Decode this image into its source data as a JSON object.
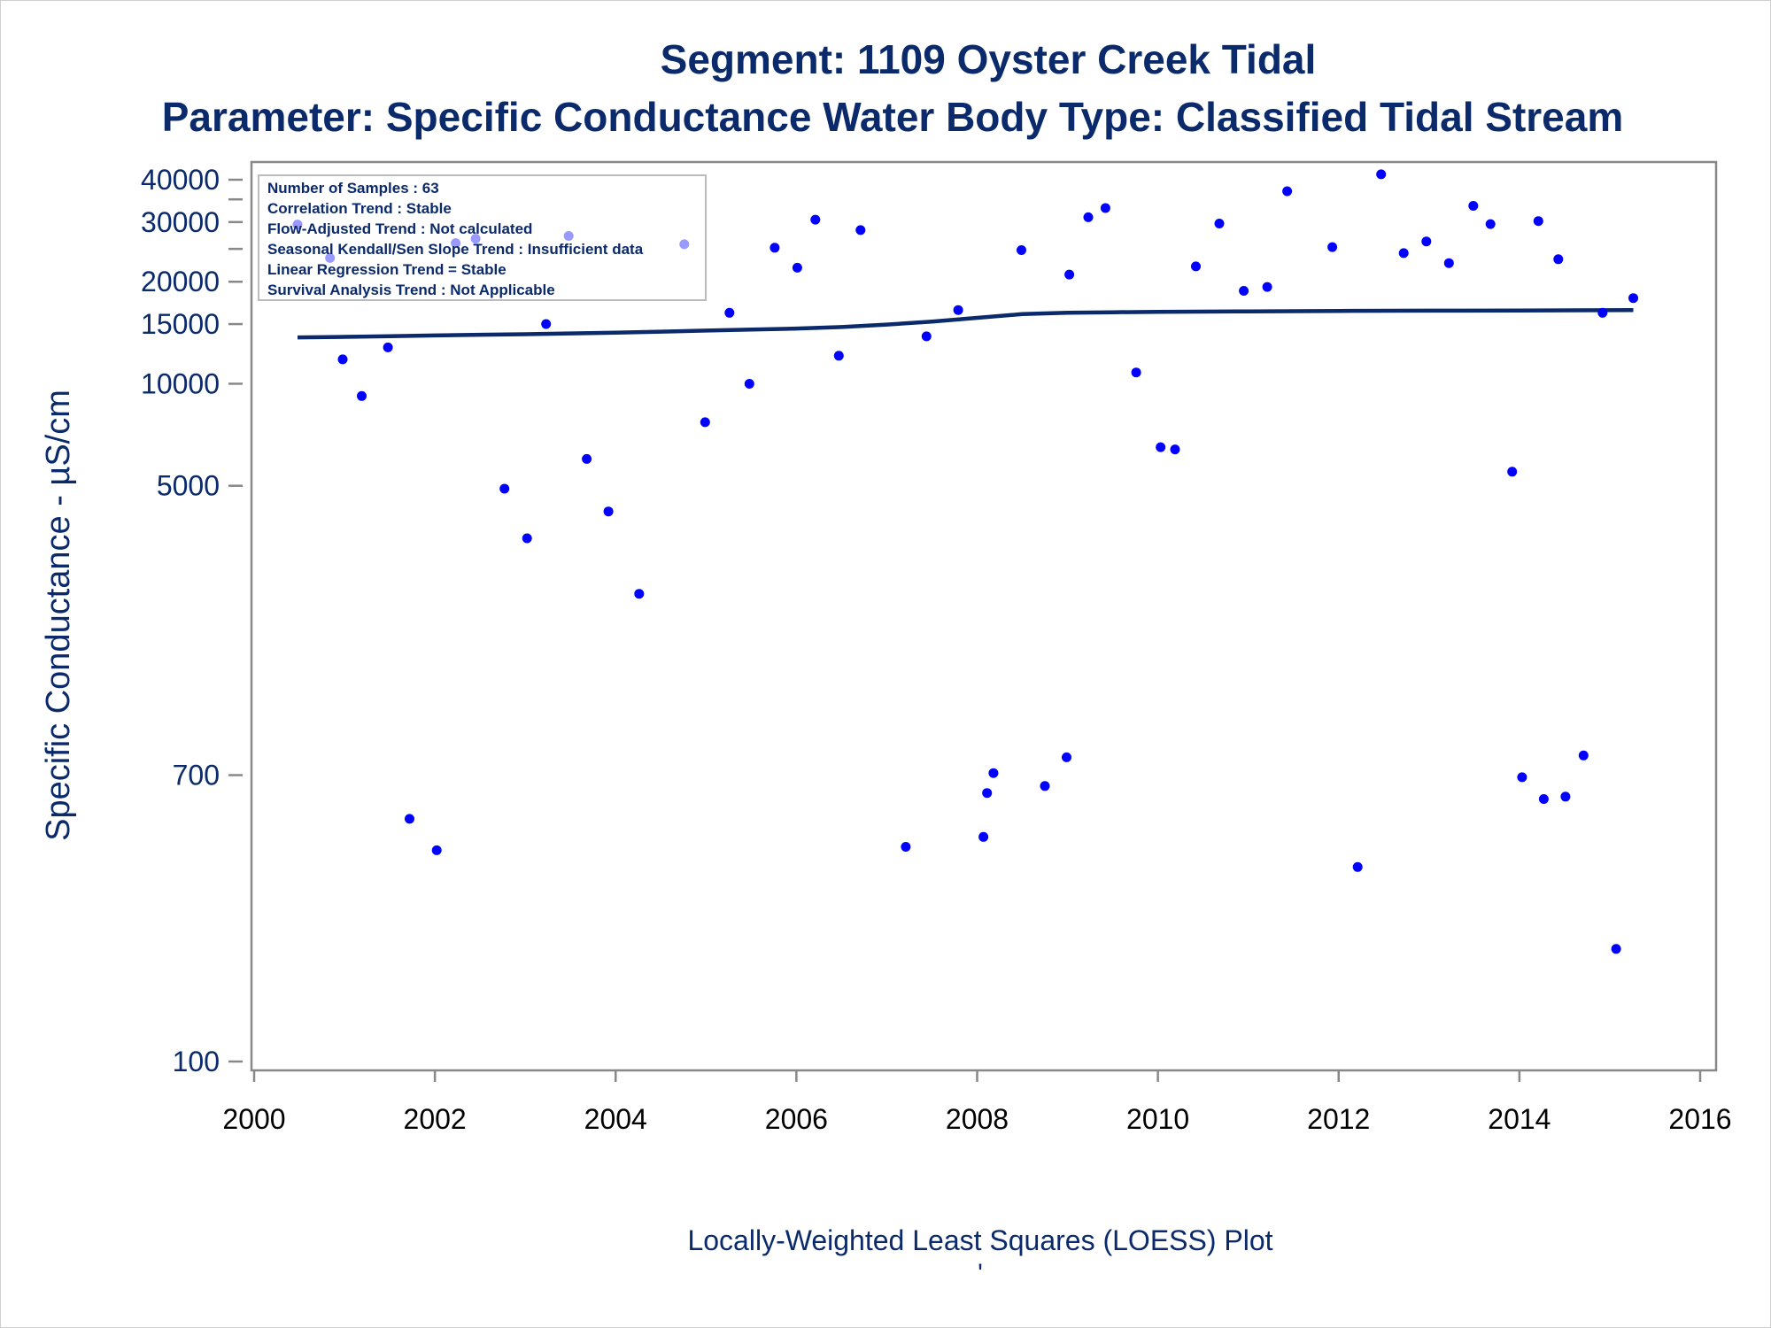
{
  "chart_data": {
    "type": "scatter",
    "title": "Segment: 1109  Oyster Creek Tidal",
    "subtitle": "Parameter: Specific Conductance   Water Body Type: Classified Tidal Stream",
    "xlabel": "Locally-Weighted Least Squares (LOESS) Plot",
    "ylabel": "Specific Conductance -  µS/cm",
    "footnote": "'",
    "y_scale": "log",
    "xlim": [
      2000,
      2016
    ],
    "ylim": [
      90,
      45000
    ],
    "x_ticks": [
      "2000",
      "2002",
      "2004",
      "2006",
      "2008",
      "2010",
      "2012",
      "2014",
      "2016"
    ],
    "y_ticks": [
      {
        "value": 100,
        "label": "100"
      },
      {
        "value": 700,
        "label": "700"
      },
      {
        "value": 5000,
        "label": "5000"
      },
      {
        "value": 10000,
        "label": "10000"
      },
      {
        "value": 15000,
        "label": "15000"
      },
      {
        "value": 20000,
        "label": "20000"
      },
      {
        "value": 30000,
        "label": "30000"
      },
      {
        "value": 40000,
        "label": "40000"
      }
    ],
    "y_minor_ticks": [
      25000,
      35000
    ],
    "info_box": [
      "Number of Samples : 63",
      "Correlation Trend : Stable",
      "Flow-Adjusted Trend : Not calculated",
      "Seasonal Kendall/Sen Slope Trend : Insufficient data",
      "Linear Regression Trend = Stable",
      "Survival Analysis Trend : Not Applicable"
    ],
    "info_box_position": "top-left",
    "grid": false,
    "colors": {
      "points": "#0000ff",
      "loess": "#0b2a6b",
      "text": "#0b2a6b",
      "axis": "#888888"
    },
    "series": [
      {
        "type": "scatter",
        "points": [
          [
            2000.48,
            29500
          ],
          [
            2000.84,
            23500
          ],
          [
            2000.98,
            11800
          ],
          [
            2001.19,
            9200
          ],
          [
            2001.48,
            12800
          ],
          [
            2001.72,
            520
          ],
          [
            2002.02,
            420
          ],
          [
            2002.23,
            26000
          ],
          [
            2002.45,
            26800
          ],
          [
            2002.77,
            4900
          ],
          [
            2003.02,
            3500
          ],
          [
            2003.23,
            15000
          ],
          [
            2003.48,
            27300
          ],
          [
            2003.68,
            6000
          ],
          [
            2003.92,
            4200
          ],
          [
            2004.26,
            2400
          ],
          [
            2004.76,
            25800
          ],
          [
            2004.99,
            7700
          ],
          [
            2005.26,
            16200
          ],
          [
            2005.48,
            10000
          ],
          [
            2005.76,
            25200
          ],
          [
            2006.01,
            22000
          ],
          [
            2006.21,
            30500
          ],
          [
            2006.47,
            12100
          ],
          [
            2006.71,
            28400
          ],
          [
            2007.21,
            430
          ],
          [
            2007.44,
            13800
          ],
          [
            2007.79,
            16500
          ],
          [
            2008.07,
            460
          ],
          [
            2008.11,
            620
          ],
          [
            2008.18,
            710
          ],
          [
            2008.49,
            24800
          ],
          [
            2008.75,
            650
          ],
          [
            2008.99,
            790
          ],
          [
            2009.02,
            21000
          ],
          [
            2009.23,
            31000
          ],
          [
            2009.42,
            33000
          ],
          [
            2009.76,
            10800
          ],
          [
            2010.03,
            6500
          ],
          [
            2010.19,
            6400
          ],
          [
            2010.42,
            22200
          ],
          [
            2010.68,
            29700
          ],
          [
            2010.95,
            18800
          ],
          [
            2011.21,
            19300
          ],
          [
            2011.43,
            37000
          ],
          [
            2011.93,
            25300
          ],
          [
            2012.21,
            375
          ],
          [
            2012.47,
            41500
          ],
          [
            2012.72,
            24300
          ],
          [
            2012.97,
            26300
          ],
          [
            2013.22,
            22700
          ],
          [
            2013.49,
            33500
          ],
          [
            2013.68,
            29600
          ],
          [
            2013.92,
            5500
          ],
          [
            2014.03,
            690
          ],
          [
            2014.21,
            30200
          ],
          [
            2014.27,
            595
          ],
          [
            2014.43,
            23300
          ],
          [
            2014.51,
            605
          ],
          [
            2014.71,
            800
          ],
          [
            2014.92,
            16200
          ],
          [
            2015.07,
            215
          ],
          [
            2015.26,
            17900
          ]
        ]
      },
      {
        "type": "line",
        "name": "LOESS",
        "points": [
          [
            2000.48,
            13700
          ],
          [
            2001.0,
            13750
          ],
          [
            2001.5,
            13820
          ],
          [
            2002.0,
            13880
          ],
          [
            2002.5,
            13950
          ],
          [
            2003.0,
            14000
          ],
          [
            2003.5,
            14080
          ],
          [
            2004.0,
            14150
          ],
          [
            2004.5,
            14250
          ],
          [
            2005.0,
            14350
          ],
          [
            2005.5,
            14450
          ],
          [
            2006.0,
            14550
          ],
          [
            2006.5,
            14700
          ],
          [
            2007.0,
            14950
          ],
          [
            2007.5,
            15250
          ],
          [
            2008.0,
            15650
          ],
          [
            2008.5,
            16050
          ],
          [
            2009.0,
            16200
          ],
          [
            2009.5,
            16250
          ],
          [
            2010.0,
            16300
          ],
          [
            2011.0,
            16350
          ],
          [
            2012.0,
            16400
          ],
          [
            2013.0,
            16430
          ],
          [
            2014.0,
            16450
          ],
          [
            2015.26,
            16500
          ]
        ]
      }
    ]
  }
}
